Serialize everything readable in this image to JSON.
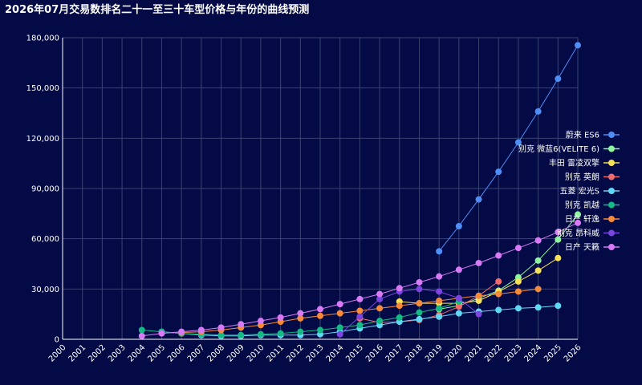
{
  "chart_data": {
    "type": "line",
    "title": "2026年07月交易数排名二十一至三十车型价格与年份的曲线预测",
    "xlabel": "",
    "ylabel": "",
    "x": [
      2000,
      2001,
      2002,
      2003,
      2004,
      2005,
      2006,
      2007,
      2008,
      2009,
      2010,
      2011,
      2012,
      2013,
      2014,
      2015,
      2016,
      2017,
      2018,
      2019,
      2020,
      2021,
      2022,
      2023,
      2024,
      2025,
      2026
    ],
    "ylim": [
      0,
      180000
    ],
    "yticks": [
      0,
      30000,
      60000,
      90000,
      120000,
      150000,
      180000
    ],
    "ytick_labels": [
      "0",
      "30,000",
      "60,000",
      "90,000",
      "120,000",
      "150,000",
      "180,000"
    ],
    "grid": true,
    "legend_position": "right",
    "series": [
      {
        "name": "蔚来 ES6",
        "color": "#4f8ef7",
        "points": [
          [
            2019,
            52500
          ],
          [
            2020,
            67500
          ],
          [
            2021,
            83500
          ],
          [
            2022,
            100000
          ],
          [
            2023,
            117500
          ],
          [
            2024,
            136000
          ],
          [
            2025,
            155500
          ],
          [
            2026,
            175500
          ]
        ]
      },
      {
        "name": "别克 微蓝6(VELITE 6)",
        "color": "#8cf59e",
        "points": [
          [
            2019,
            18000
          ],
          [
            2020,
            20000
          ],
          [
            2021,
            24500
          ],
          [
            2022,
            29000
          ],
          [
            2023,
            37000
          ],
          [
            2024,
            47000
          ],
          [
            2025,
            59500
          ],
          [
            2026,
            74500
          ]
        ]
      },
      {
        "name": "丰田 雷凌双擎",
        "color": "#f7e05a",
        "points": [
          [
            2017,
            22500
          ],
          [
            2018,
            21500
          ],
          [
            2019,
            21500
          ],
          [
            2020,
            21500
          ],
          [
            2021,
            23000
          ],
          [
            2022,
            28500
          ],
          [
            2023,
            34500
          ],
          [
            2024,
            41000
          ],
          [
            2025,
            48500
          ]
        ]
      },
      {
        "name": "别克 英朗",
        "color": "#f26b6b",
        "points": [
          [
            2015,
            12500
          ],
          [
            2016,
            10000
          ],
          [
            2017,
            10500
          ],
          [
            2018,
            11500
          ],
          [
            2019,
            14500
          ],
          [
            2020,
            19500
          ],
          [
            2021,
            26000
          ],
          [
            2022,
            34500
          ]
        ]
      },
      {
        "name": "五菱 宏光S",
        "color": "#5ed8f5",
        "points": [
          [
            2005,
            4500
          ],
          [
            2006,
            3500
          ],
          [
            2007,
            2500
          ],
          [
            2008,
            2000
          ],
          [
            2009,
            2000
          ],
          [
            2010,
            2500
          ],
          [
            2011,
            2500
          ],
          [
            2012,
            2500
          ],
          [
            2013,
            3000
          ],
          [
            2014,
            4500
          ],
          [
            2015,
            6500
          ],
          [
            2016,
            8500
          ],
          [
            2017,
            10500
          ],
          [
            2018,
            12000
          ],
          [
            2019,
            13500
          ],
          [
            2020,
            15500
          ],
          [
            2021,
            16500
          ],
          [
            2022,
            17500
          ],
          [
            2023,
            18500
          ],
          [
            2024,
            19000
          ],
          [
            2025,
            20000
          ]
        ]
      },
      {
        "name": "别克 凯越",
        "color": "#16b886",
        "points": [
          [
            2004,
            5500
          ],
          [
            2005,
            4500
          ],
          [
            2006,
            3500
          ],
          [
            2007,
            3000
          ],
          [
            2008,
            2500
          ],
          [
            2009,
            2500
          ],
          [
            2010,
            3000
          ],
          [
            2011,
            3500
          ],
          [
            2012,
            4500
          ],
          [
            2013,
            5500
          ],
          [
            2014,
            7000
          ],
          [
            2015,
            8500
          ],
          [
            2016,
            11000
          ],
          [
            2017,
            13000
          ],
          [
            2018,
            16000
          ],
          [
            2019,
            18500
          ],
          [
            2020,
            22500
          ]
        ]
      },
      {
        "name": "日产 轩逸",
        "color": "#f58a3a",
        "points": [
          [
            2006,
            4000
          ],
          [
            2007,
            4500
          ],
          [
            2008,
            5500
          ],
          [
            2009,
            7000
          ],
          [
            2010,
            8500
          ],
          [
            2011,
            10500
          ],
          [
            2012,
            12500
          ],
          [
            2013,
            14000
          ],
          [
            2014,
            15500
          ],
          [
            2015,
            17000
          ],
          [
            2016,
            18500
          ],
          [
            2017,
            20000
          ],
          [
            2018,
            21500
          ],
          [
            2019,
            23000
          ],
          [
            2020,
            24500
          ],
          [
            2021,
            26000
          ],
          [
            2022,
            27000
          ],
          [
            2023,
            28500
          ],
          [
            2024,
            30000
          ]
        ]
      },
      {
        "name": "别克 昂科威",
        "color": "#7b45e0",
        "points": [
          [
            2014,
            3000
          ],
          [
            2015,
            13500
          ],
          [
            2016,
            24000
          ],
          [
            2017,
            28500
          ],
          [
            2018,
            30000
          ],
          [
            2019,
            28500
          ],
          [
            2020,
            24500
          ],
          [
            2021,
            15000
          ]
        ]
      },
      {
        "name": "日产 天籁",
        "color": "#d87af5",
        "points": [
          [
            2004,
            2000
          ],
          [
            2005,
            3500
          ],
          [
            2006,
            4500
          ],
          [
            2007,
            5500
          ],
          [
            2008,
            7000
          ],
          [
            2009,
            9000
          ],
          [
            2010,
            11000
          ],
          [
            2011,
            13000
          ],
          [
            2012,
            15500
          ],
          [
            2013,
            18000
          ],
          [
            2014,
            21000
          ],
          [
            2015,
            24000
          ],
          [
            2016,
            27000
          ],
          [
            2017,
            30500
          ],
          [
            2018,
            34000
          ],
          [
            2019,
            37500
          ],
          [
            2020,
            41500
          ],
          [
            2021,
            45500
          ],
          [
            2022,
            50000
          ],
          [
            2023,
            54500
          ],
          [
            2024,
            59000
          ],
          [
            2025,
            64000
          ],
          [
            2026,
            69500
          ]
        ]
      }
    ]
  }
}
